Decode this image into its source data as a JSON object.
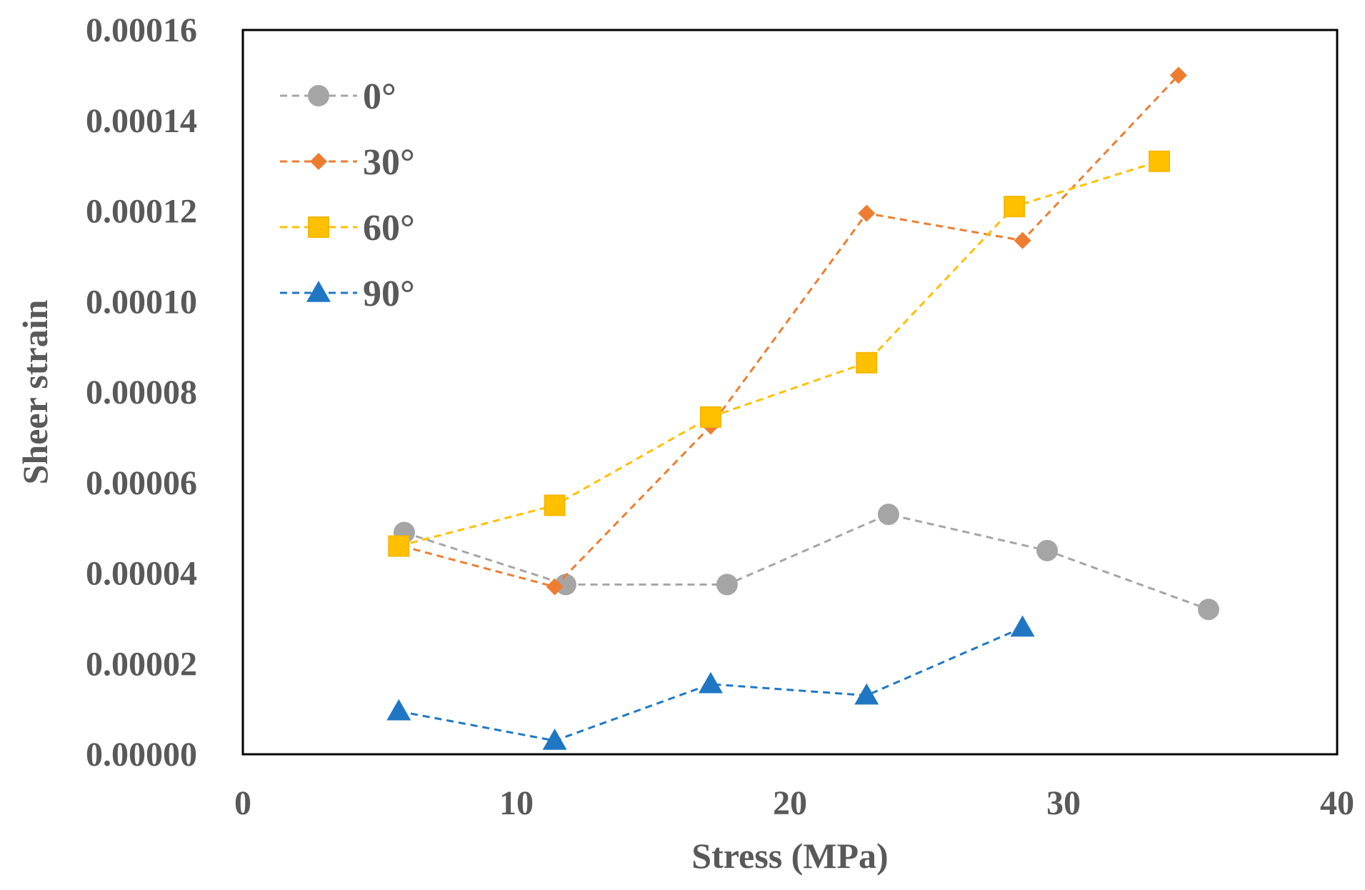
{
  "chart_data": {
    "type": "line",
    "xlabel": "Stress (MPa)",
    "ylabel": "Sheer strain",
    "xlim": [
      0,
      40
    ],
    "ylim": [
      0,
      0.00016
    ],
    "xticks": [
      0,
      10,
      20,
      30,
      40
    ],
    "xtick_labels": [
      "0",
      "10",
      "20",
      "30",
      "40"
    ],
    "yticks": [
      0,
      2e-05,
      4e-05,
      6e-05,
      8e-05,
      0.0001,
      0.00012,
      0.00014,
      0.00016
    ],
    "ytick_labels": [
      "0.00000",
      "0.00002",
      "0.00004",
      "0.00006",
      "0.00008",
      "0.00010",
      "0.00012",
      "0.00014",
      "0.00016"
    ],
    "grid": false,
    "legend_position": "top-left",
    "series": [
      {
        "name": "0°",
        "marker": "circle",
        "color": "#a5a5a5",
        "x": [
          5.9,
          11.8,
          17.7,
          23.6,
          29.4,
          35.3
        ],
        "y": [
          4.9e-05,
          3.75e-05,
          3.75e-05,
          5.3e-05,
          4.5e-05,
          3.2e-05
        ]
      },
      {
        "name": "30°",
        "marker": "diamond",
        "color": "#ed7d31",
        "x": [
          5.8,
          11.4,
          17.1,
          22.8,
          28.5,
          34.2
        ],
        "y": [
          4.6e-05,
          3.7e-05,
          7.25e-05,
          0.0001195,
          0.0001135,
          0.00015
        ]
      },
      {
        "name": "60°",
        "marker": "square",
        "color": "#ffc000",
        "x": [
          5.7,
          11.4,
          17.1,
          22.8,
          28.2,
          33.5
        ],
        "y": [
          4.6e-05,
          5.5e-05,
          7.45e-05,
          8.65e-05,
          0.000121,
          0.000131
        ]
      },
      {
        "name": "90°",
        "marker": "triangle",
        "color": "#1f77c4",
        "x": [
          5.7,
          11.4,
          17.1,
          22.8,
          28.5
        ],
        "y": [
          9.5e-06,
          3e-06,
          1.55e-05,
          1.3e-05,
          2.8e-05
        ]
      }
    ]
  }
}
